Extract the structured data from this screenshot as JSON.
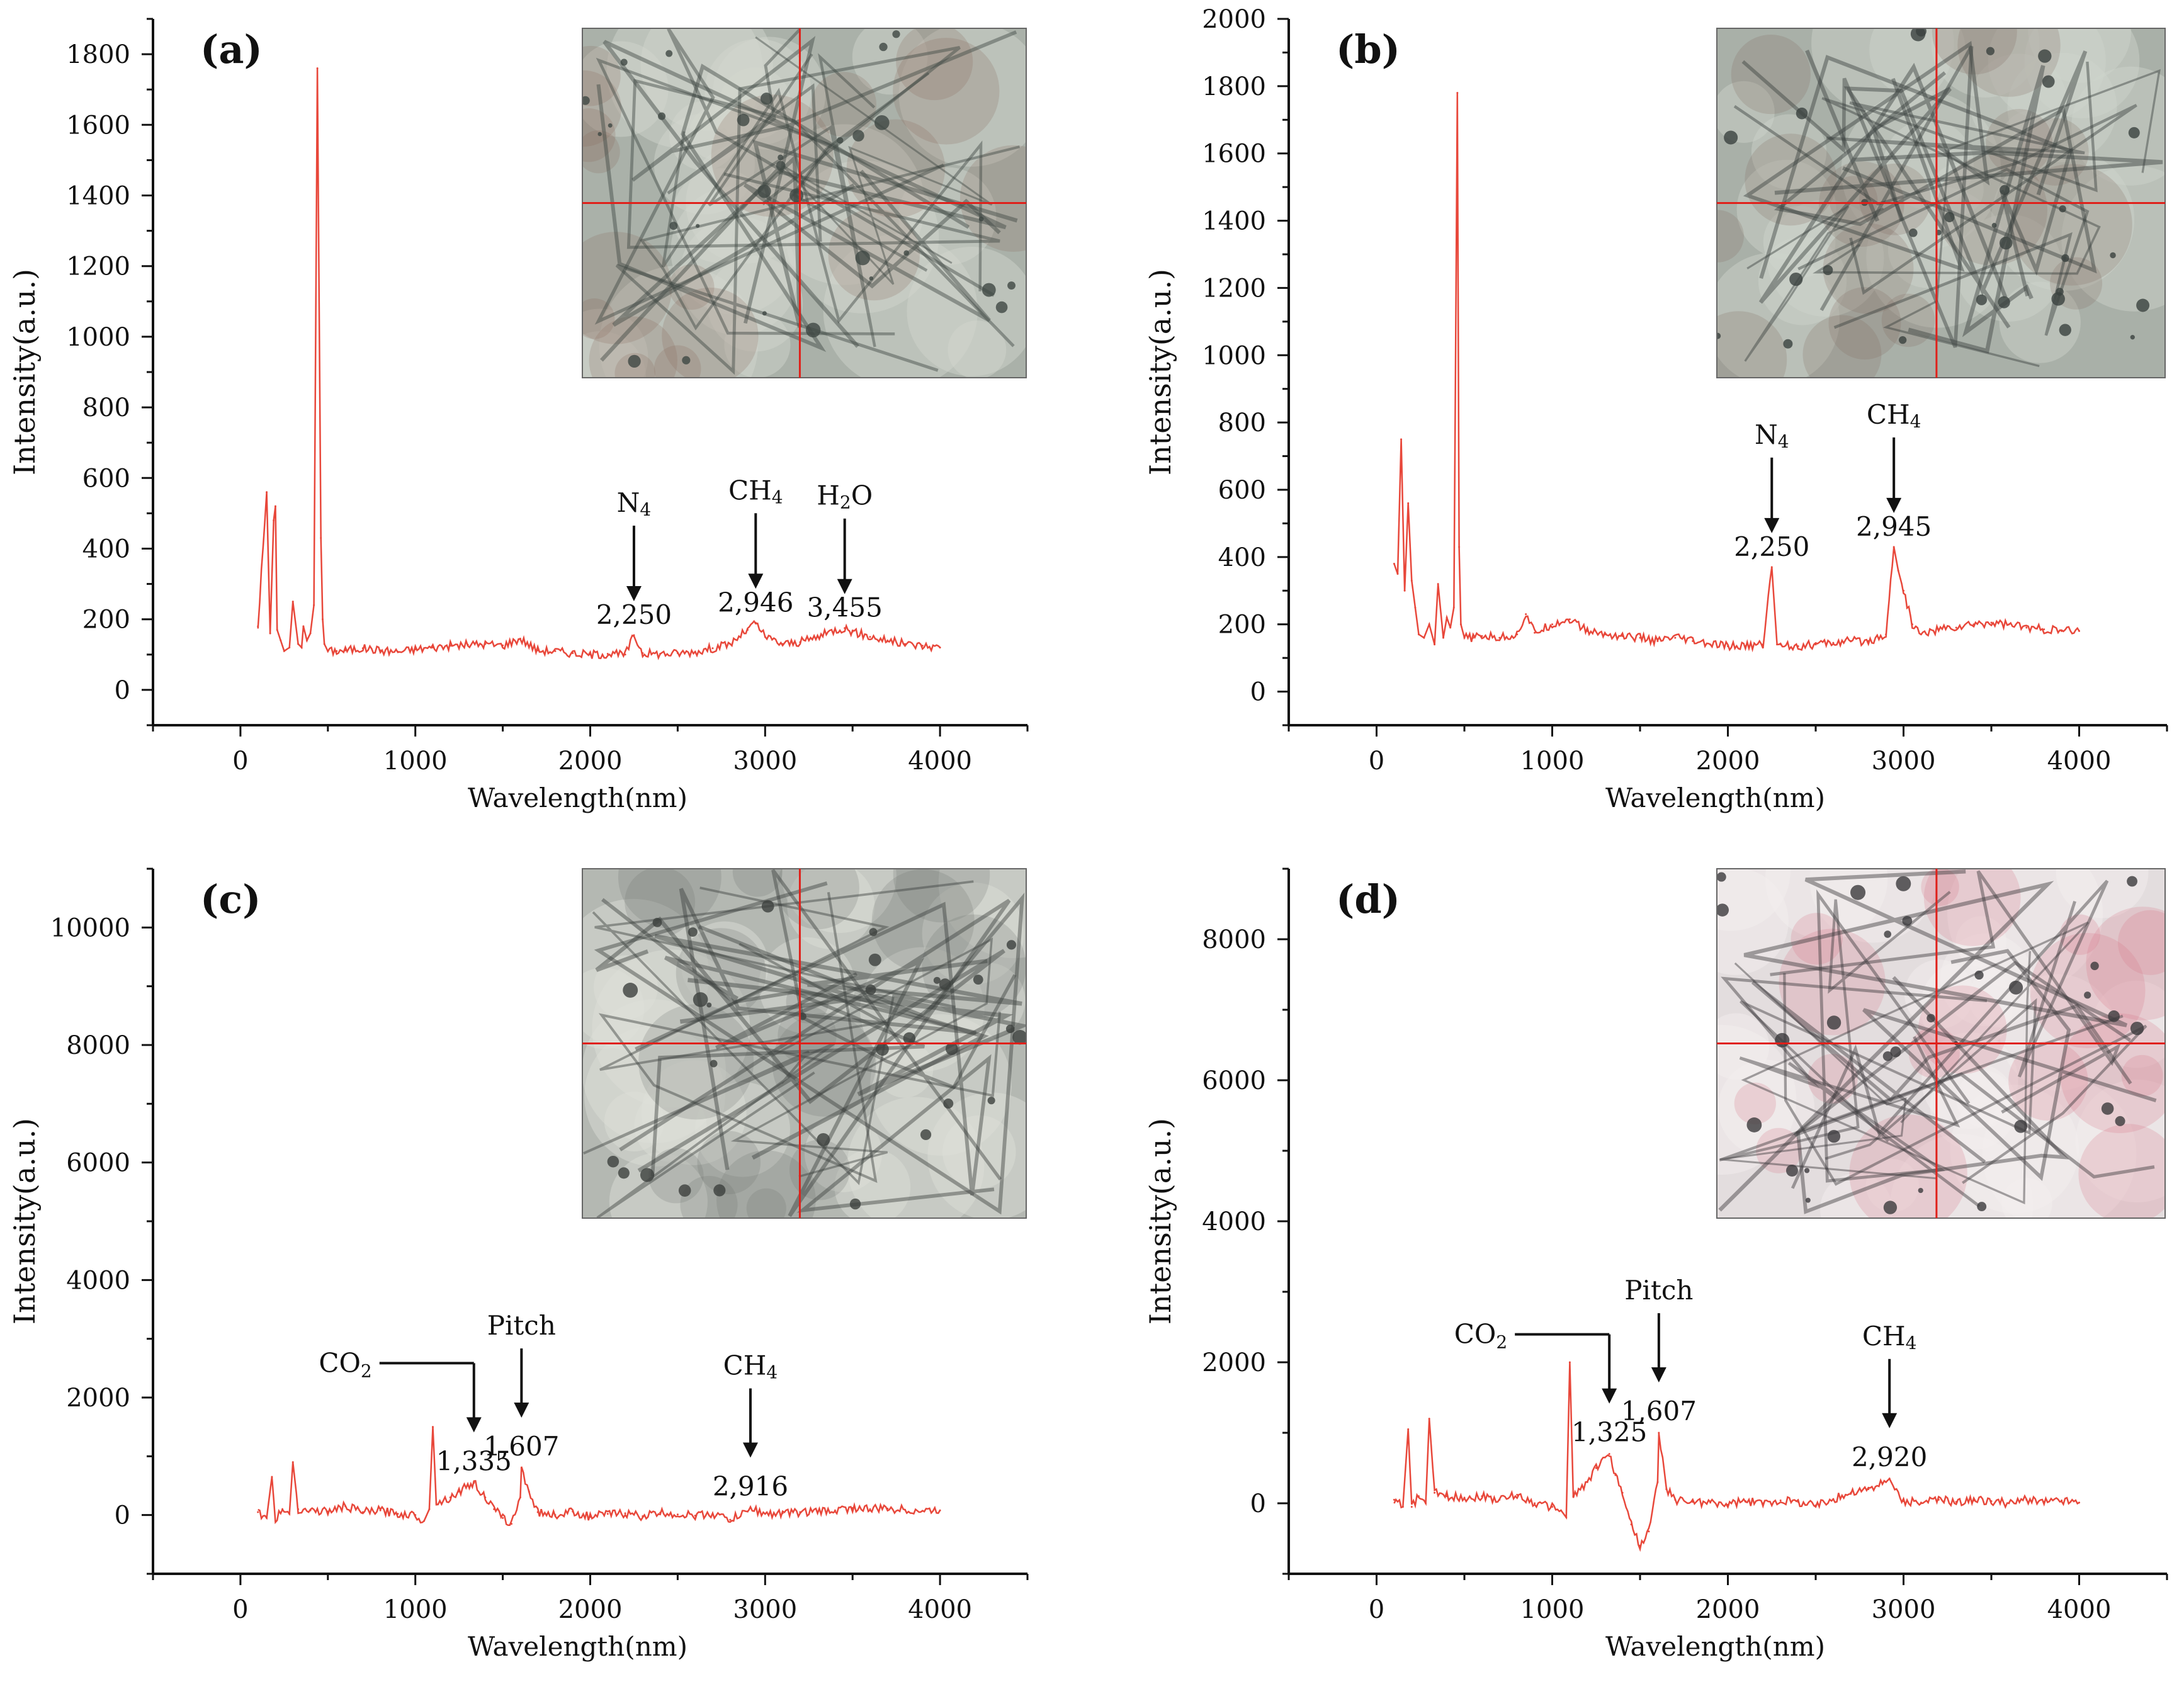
{
  "figure": {
    "xlabel": "Wavelength(nm)",
    "ylabel": "Intensity(a.u.)",
    "series_color": "#e8473a"
  },
  "chart_data": [
    {
      "panel": "(a)",
      "type": "line",
      "xlabel": "Wavelength(nm)",
      "ylabel": "Intensity(a.u.)",
      "xlim": [
        -500,
        4500
      ],
      "ylim": [
        -100,
        1900
      ],
      "xticks": [
        0,
        1000,
        2000,
        3000,
        4000
      ],
      "yticks": [
        0,
        200,
        400,
        600,
        800,
        1000,
        1200,
        1400,
        1600,
        1800
      ],
      "inset_colors": {
        "bg": "#aab1a9",
        "dark": "#3f4743",
        "light": "#d2d8cf",
        "accent": "#8a6a5a"
      },
      "series": [
        {
          "x": [
            100,
            150,
            170,
            190,
            200,
            210,
            230,
            250,
            280,
            300,
            330,
            350,
            360,
            380,
            400,
            420,
            440,
            460,
            470,
            480,
            500,
            550,
            600,
            700,
            800,
            900,
            1000,
            1100,
            1200,
            1300,
            1400,
            1500,
            1600,
            1700,
            1800,
            1900,
            2000,
            2100,
            2200,
            2250,
            2300,
            2400,
            2500,
            2600,
            2700,
            2800,
            2900,
            2946,
            3000,
            3100,
            3200,
            3300,
            3400,
            3455,
            3500,
            3600,
            3700,
            3800,
            3900,
            4000
          ],
          "y": [
            180,
            560,
            160,
            480,
            520,
            170,
            140,
            110,
            120,
            250,
            130,
            120,
            180,
            140,
            160,
            240,
            1760,
            430,
            200,
            130,
            110,
            110,
            112,
            118,
            112,
            108,
            115,
            120,
            125,
            128,
            130,
            126,
            145,
            112,
            110,
            104,
            100,
            102,
            100,
            155,
            104,
            102,
            104,
            108,
            118,
            130,
            170,
            190,
            150,
            130,
            135,
            150,
            170,
            175,
            165,
            150,
            140,
            130,
            125,
            120
          ]
        }
      ],
      "annotations": [
        {
          "label": "N",
          "sub": "4",
          "value": "2,250",
          "x": 2250,
          "y": 155
        },
        {
          "label": "CH",
          "sub": "4",
          "value": "2,946",
          "x": 2946,
          "y": 190
        },
        {
          "label": "H",
          "sub": "2",
          "tail": "O",
          "value": "3,455",
          "x": 3455,
          "y": 175
        }
      ]
    },
    {
      "panel": "(b)",
      "type": "line",
      "xlabel": "Wavelength(nm)",
      "ylabel": "Intensity(a.u.)",
      "xlim": [
        -500,
        4500
      ],
      "ylim": [
        -100,
        2000
      ],
      "xticks": [
        0,
        1000,
        2000,
        3000,
        4000
      ],
      "yticks": [
        0,
        200,
        400,
        600,
        800,
        1000,
        1200,
        1400,
        1600,
        1800,
        2000
      ],
      "inset_colors": {
        "bg": "#a9b0a8",
        "dark": "#3a413e",
        "light": "#cfd5cc",
        "accent": "#7e6a5e"
      },
      "series": [
        {
          "x": [
            100,
            120,
            140,
            160,
            180,
            200,
            220,
            240,
            270,
            300,
            330,
            350,
            380,
            400,
            420,
            440,
            460,
            470,
            480,
            500,
            550,
            600,
            700,
            800,
            850,
            900,
            1000,
            1100,
            1200,
            1300,
            1400,
            1500,
            1600,
            1700,
            1800,
            1900,
            2000,
            2100,
            2200,
            2250,
            2280,
            2300,
            2400,
            2500,
            2600,
            2700,
            2800,
            2900,
            2945,
            2970,
            3000,
            3050,
            3100,
            3200,
            3300,
            3400,
            3500,
            3600,
            3700,
            3800,
            3900,
            4000
          ],
          "y": [
            380,
            350,
            750,
            300,
            560,
            330,
            250,
            170,
            160,
            200,
            140,
            320,
            160,
            220,
            190,
            250,
            1780,
            430,
            200,
            160,
            160,
            165,
            160,
            170,
            230,
            175,
            200,
            215,
            180,
            170,
            165,
            160,
            150,
            160,
            150,
            140,
            135,
            135,
            140,
            370,
            140,
            140,
            135,
            140,
            145,
            150,
            150,
            170,
            430,
            360,
            300,
            200,
            170,
            185,
            190,
            200,
            205,
            200,
            190,
            185,
            180,
            180
          ]
        }
      ],
      "annotations": [
        {
          "label": "N",
          "sub": "4",
          "value": "2,250",
          "x": 2250,
          "y": 370
        },
        {
          "label": "CH",
          "sub": "4",
          "value": "2,945",
          "x": 2945,
          "y": 430
        }
      ]
    },
    {
      "panel": "(c)",
      "type": "line",
      "xlabel": "Wavelength(nm)",
      "ylabel": "Intensity(a.u.)",
      "xlim": [
        -500,
        4500
      ],
      "ylim": [
        -1000,
        11000
      ],
      "xticks": [
        0,
        1000,
        2000,
        3000,
        4000
      ],
      "yticks": [
        0,
        2000,
        4000,
        6000,
        8000,
        10000
      ],
      "inset_colors": {
        "bg": "#b4b8b2",
        "dark": "#3c403d",
        "light": "#dde0da",
        "accent": "#6f746f"
      },
      "series": [
        {
          "x": [
            100,
            150,
            180,
            200,
            240,
            280,
            300,
            330,
            400,
            500,
            600,
            700,
            800,
            900,
            1000,
            1050,
            1080,
            1100,
            1120,
            1200,
            1250,
            1300,
            1335,
            1400,
            1450,
            1500,
            1550,
            1600,
            1607,
            1650,
            1700,
            1800,
            1900,
            2000,
            2100,
            2200,
            2300,
            2400,
            2500,
            2600,
            2700,
            2800,
            2900,
            2916,
            3000,
            3100,
            3200,
            3300,
            3400,
            3500,
            3600,
            3700,
            3800,
            3900,
            4000
          ],
          "y": [
            50,
            -50,
            650,
            -100,
            100,
            20,
            900,
            100,
            80,
            60,
            150,
            50,
            80,
            20,
            0,
            -100,
            100,
            1500,
            200,
            300,
            400,
            500,
            550,
            300,
            100,
            -50,
            -150,
            300,
            800,
            400,
            50,
            0,
            60,
            -30,
            20,
            30,
            -20,
            40,
            10,
            -10,
            20,
            -80,
            60,
            120,
            20,
            30,
            50,
            60,
            80,
            120,
            100,
            110,
            90,
            70,
            80
          ]
        }
      ],
      "annotations": [
        {
          "label": "CO",
          "sub": "2",
          "value": "1,335",
          "x": 1335,
          "y": 550
        },
        {
          "label": "Pitch",
          "value": "1,607",
          "x": 1607,
          "y": 800
        },
        {
          "label": "CH",
          "sub": "4",
          "value": "2,916",
          "x": 2916,
          "y": 120
        }
      ]
    },
    {
      "panel": "(d)",
      "type": "line",
      "xlabel": "Wavelength(nm)",
      "ylabel": "Intensity(a.u.)",
      "xlim": [
        -500,
        4500
      ],
      "ylim": [
        -1000,
        9000
      ],
      "xticks": [
        0,
        1000,
        2000,
        3000,
        4000
      ],
      "yticks": [
        0,
        2000,
        4000,
        6000,
        8000
      ],
      "inset_colors": {
        "bg": "#e3ddde",
        "dark": "#3b3a3c",
        "light": "#f3f0f0",
        "accent": "#d67385"
      },
      "series": [
        {
          "x": [
            100,
            150,
            180,
            200,
            240,
            280,
            300,
            330,
            400,
            500,
            600,
            700,
            800,
            900,
            1000,
            1050,
            1080,
            1100,
            1120,
            1200,
            1250,
            1300,
            1325,
            1360,
            1400,
            1450,
            1500,
            1550,
            1600,
            1607,
            1650,
            1700,
            1800,
            1900,
            2000,
            2100,
            2200,
            2300,
            2400,
            2500,
            2600,
            2700,
            2800,
            2900,
            2920,
            2950,
            3000,
            3100,
            3200,
            3300,
            3400,
            3500,
            3600,
            3700,
            3800,
            3900,
            4000
          ],
          "y": [
            50,
            -50,
            1050,
            -50,
            100,
            0,
            1200,
            150,
            100,
            80,
            100,
            50,
            120,
            0,
            -50,
            -100,
            -200,
            2000,
            100,
            300,
            500,
            650,
            700,
            400,
            150,
            -300,
            -600,
            -400,
            300,
            1000,
            200,
            50,
            20,
            10,
            -20,
            30,
            0,
            40,
            20,
            -30,
            60,
            150,
            200,
            300,
            350,
            200,
            30,
            10,
            50,
            20,
            40,
            30,
            0,
            50,
            20,
            40,
            10
          ]
        }
      ],
      "annotations": [
        {
          "label": "CO",
          "sub": "2",
          "value": "1,325",
          "x": 1325,
          "y": 700
        },
        {
          "label": "Pitch",
          "value": "1,607",
          "x": 1607,
          "y": 1000
        },
        {
          "label": "CH",
          "sub": "4",
          "value": "2,920",
          "x": 2920,
          "y": 350
        }
      ]
    }
  ]
}
